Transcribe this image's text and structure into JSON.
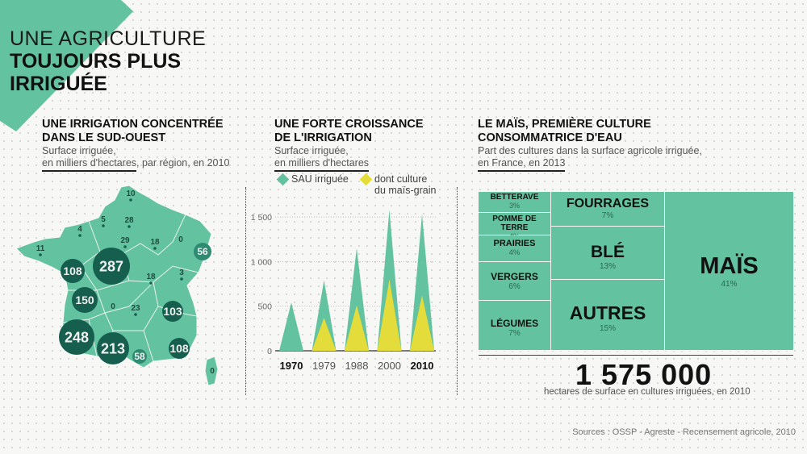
{
  "colors": {
    "green": "#63c2a0",
    "dark_green": "#165f4f",
    "yellow": "#e3dc3a",
    "text": "#111111"
  },
  "header": {
    "line1": "UNE AGRICULTURE",
    "line2": "TOUJOURS PLUS",
    "line3": "IRRIGUÉE"
  },
  "map_section": {
    "title_l1": "UNE IRRIGATION CONCENTRÉE",
    "title_l2": "DANS LE SUD-OUEST",
    "sub_l1": "Surface irriguée,",
    "sub_l2a": "en milliers d'hectares",
    "sub_l2b": ", par région, en 2010",
    "icon": "france-map-icon"
  },
  "chart_section": {
    "title_l1": "UNE FORTE CROISSANCE",
    "title_l2": "DE L'IRRIGATION",
    "sub_l1": "Surface irriguée,",
    "sub_l2": "en milliers d'hectares",
    "legend_sau": "SAU irriguée",
    "legend_mais_l1": "dont culture",
    "legend_mais_l2": "du maïs-grain"
  },
  "treemap_section": {
    "title_l1": "LE MAÏS, PREMIÈRE CULTURE",
    "title_l2": "CONSOMMATRICE D'EAU",
    "sub_l1": "Part des cultures dans la surface agricole irriguée,",
    "sub_l2": "en France, en 2013",
    "tiles": [
      {
        "name": "BETTERAVE",
        "pct": "3%"
      },
      {
        "name": "POMME DE TERRE",
        "pct": "4%"
      },
      {
        "name": "PRAIRIES",
        "pct": "4%"
      },
      {
        "name": "VERGERS",
        "pct": "6%"
      },
      {
        "name": "LÉGUMES",
        "pct": "7%"
      },
      {
        "name": "FOURRAGES",
        "pct": "7%"
      },
      {
        "name": "BLÉ",
        "pct": "13%"
      },
      {
        "name": "AUTRES",
        "pct": "15%"
      },
      {
        "name": "MAÏS",
        "pct": "41%"
      }
    ],
    "total_value": "1 575 000",
    "total_caption": "hectares de surface en cultures irriguées, en 2010"
  },
  "sources": "Sources : OSSP - Agreste - Recensement agricole, 2010",
  "chart_data": [
    {
      "type": "area",
      "x": [
        "1970",
        "1979",
        "1988",
        "2000",
        "2010"
      ],
      "series": [
        {
          "name": "SAU irriguée",
          "values": [
            540,
            790,
            1150,
            1580,
            1530
          ]
        },
        {
          "name": "dont culture du maïs-grain",
          "values": [
            0,
            370,
            510,
            800,
            620
          ]
        }
      ],
      "ylim": [
        0,
        1600
      ],
      "yticks": [
        "0",
        "500",
        "1 000",
        "1 500"
      ],
      "bold_x": [
        "1970",
        "2010"
      ]
    },
    {
      "type": "bubble-map",
      "unit": "milliers d'hectares",
      "values": [
        "10",
        "5",
        "28",
        "4",
        "29",
        "18",
        "0",
        "11",
        "108",
        "287",
        "56",
        "18",
        "3",
        "150",
        "0",
        "23",
        "103",
        "248",
        "213",
        "58",
        "108",
        "0"
      ]
    }
  ]
}
